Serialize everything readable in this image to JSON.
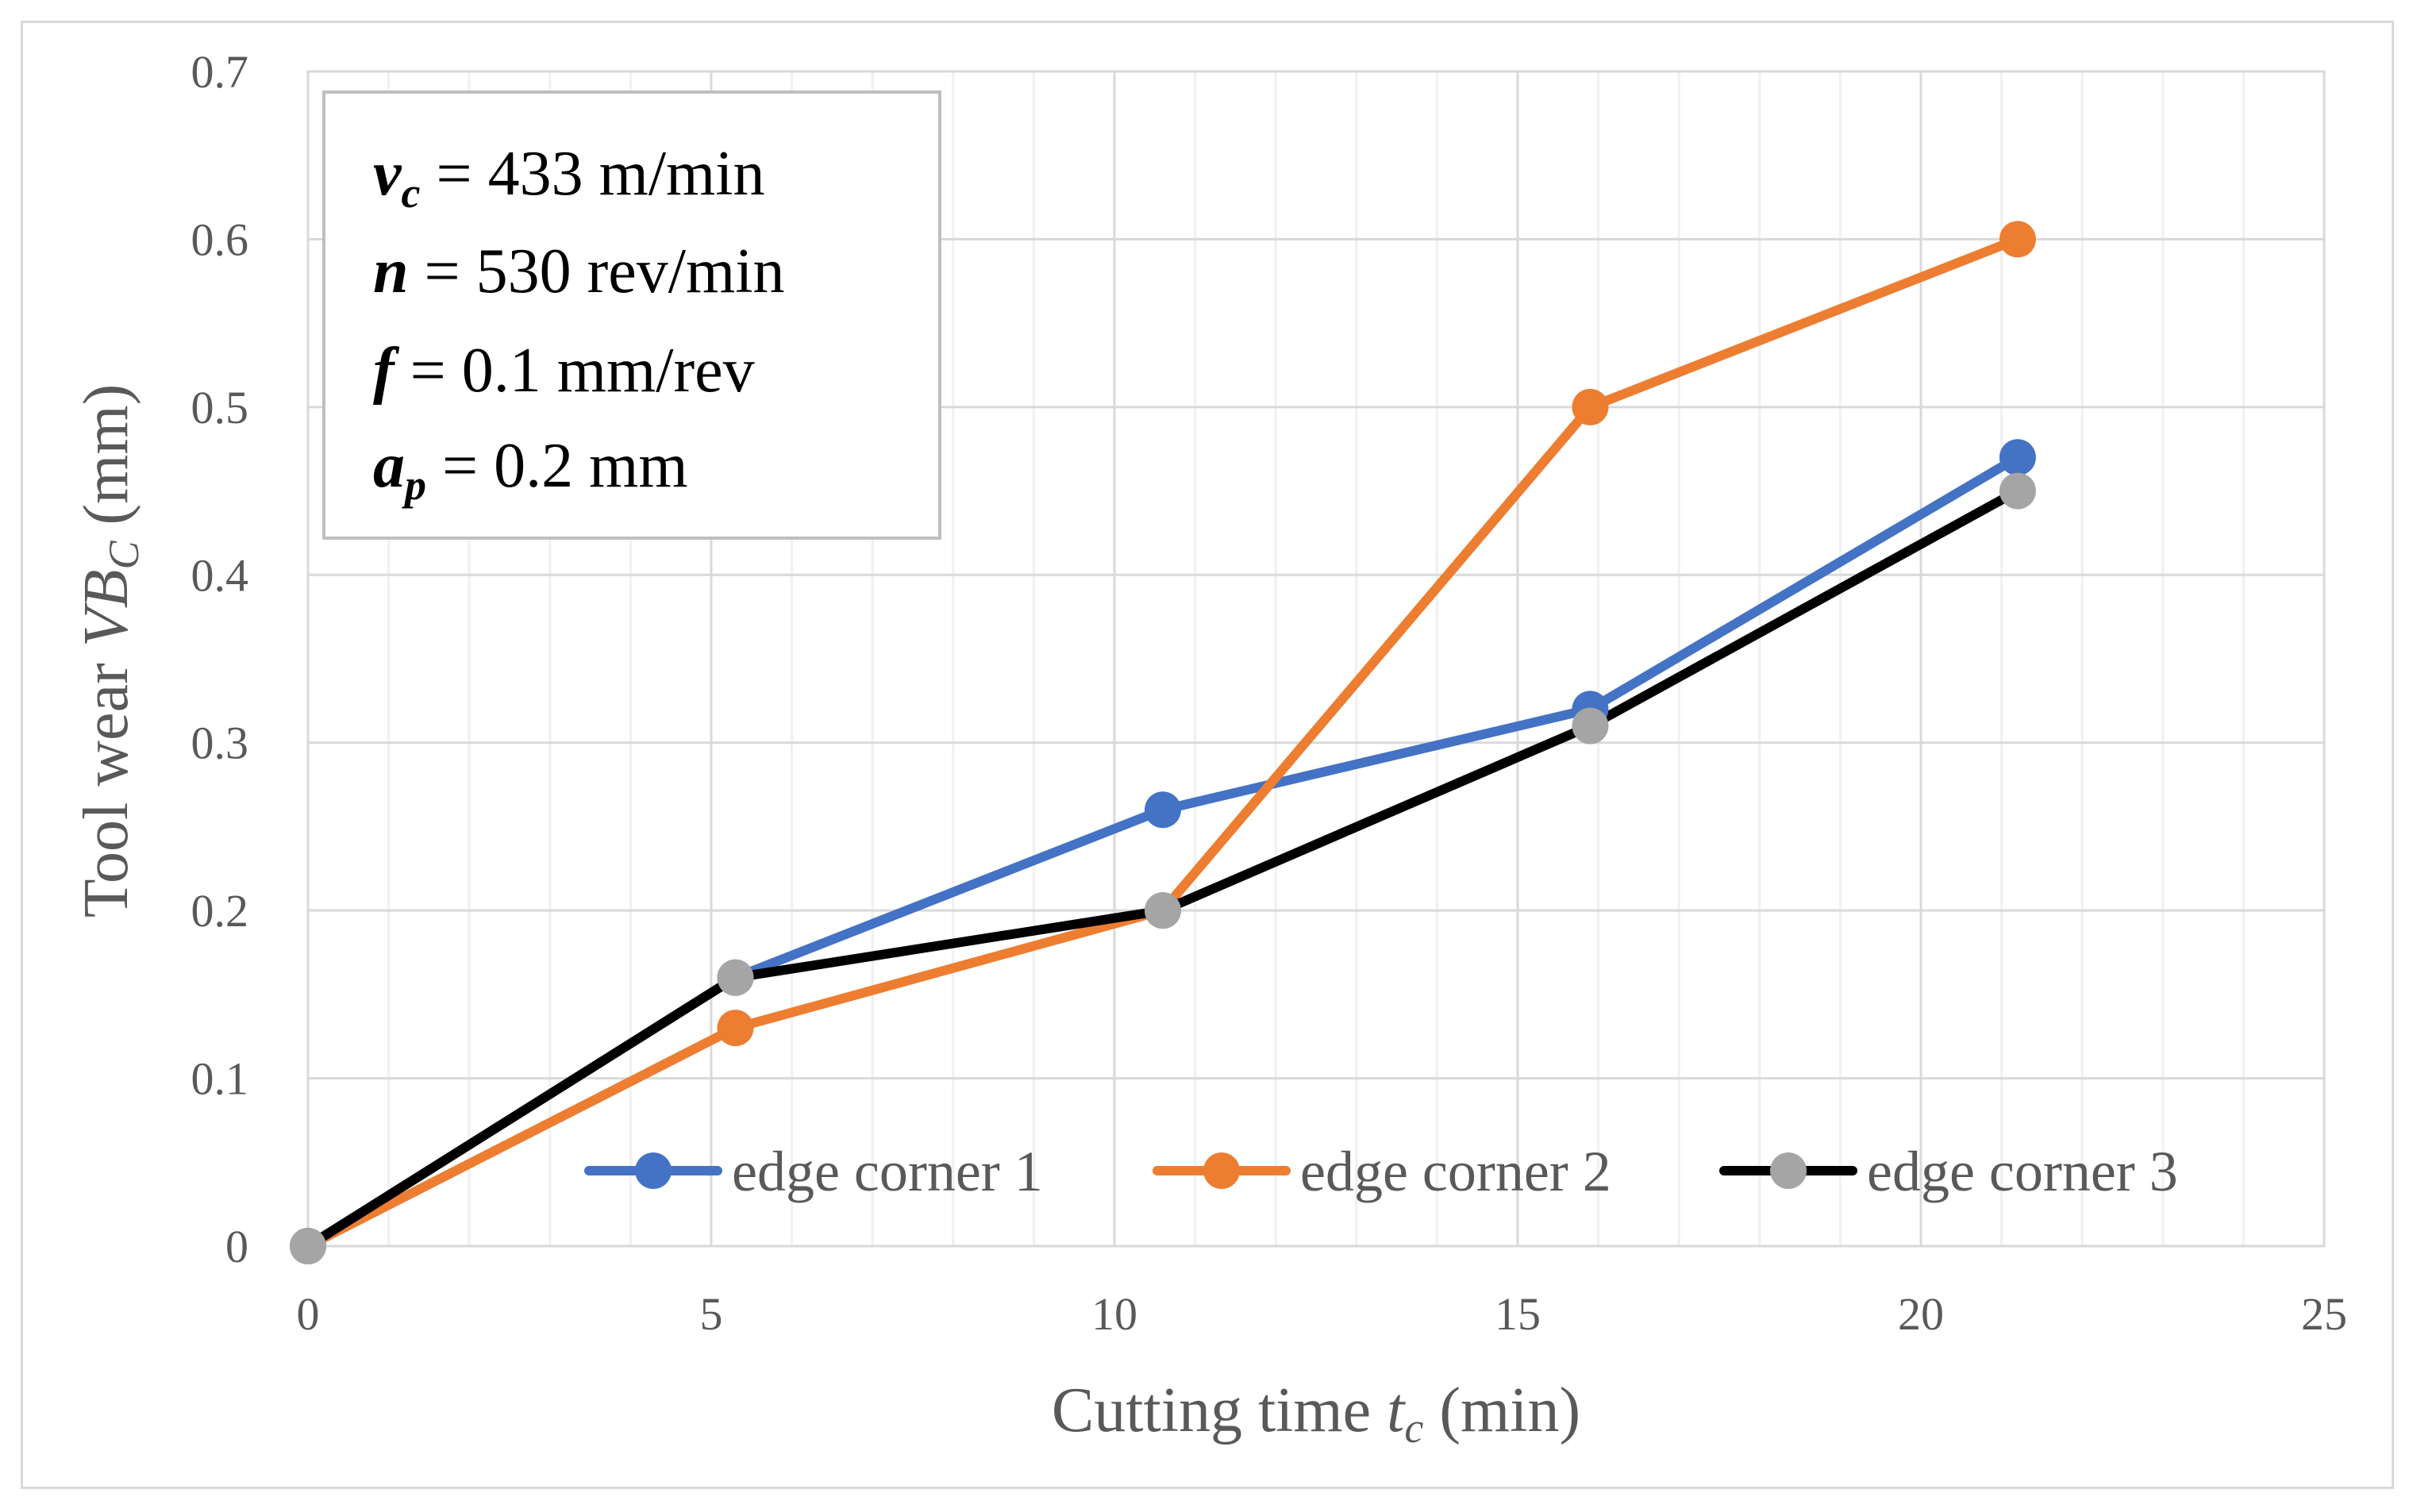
{
  "chart_data": {
    "type": "line",
    "title": "",
    "xlabel": {
      "prefix": "Cutting time ",
      "var": "t",
      "sub": "c",
      "suffix": " (min)"
    },
    "ylabel": {
      "prefix": "Tool wear ",
      "var": "VB",
      "sub": "C",
      "suffix": " (mm)"
    },
    "xlim": [
      0,
      25
    ],
    "ylim": [
      0,
      0.7
    ],
    "x_major_ticks": [
      "0",
      "5",
      "10",
      "15",
      "20",
      "25"
    ],
    "y_major_ticks": [
      "0",
      "0.1",
      "0.2",
      "0.3",
      "0.4",
      "0.5",
      "0.6",
      "0.7"
    ],
    "x_minor_step": 1,
    "y_major_step": 0.1,
    "grid": true,
    "x": [
      0,
      5.3,
      10.6,
      15.9,
      21.2
    ],
    "series": [
      {
        "name": "edge corner 1",
        "line_color": "#4472c4",
        "marker_color": "#4472c4",
        "values": [
          0,
          0.16,
          0.26,
          0.32,
          0.47
        ]
      },
      {
        "name": "edge corner 2",
        "line_color": "#ed7d31",
        "marker_color": "#ed7d31",
        "values": [
          0,
          0.13,
          0.2,
          0.5,
          0.6
        ]
      },
      {
        "name": "edge corner 3",
        "line_color": "#000000",
        "marker_color": "#a5a5a5",
        "values": [
          0,
          0.16,
          0.2,
          0.31,
          0.45
        ]
      }
    ],
    "legend_position": "bottom-right",
    "annotation": [
      {
        "var": "v",
        "sub": "c",
        "text": " = 433 m/min"
      },
      {
        "var": "n",
        "sub": "",
        "text": " = 530 rev/min"
      },
      {
        "var": "f",
        "sub": "",
        "text": " =  0.1 mm/rev"
      },
      {
        "var": "a",
        "sub": "p",
        "text": " = 0.2 mm"
      }
    ]
  }
}
